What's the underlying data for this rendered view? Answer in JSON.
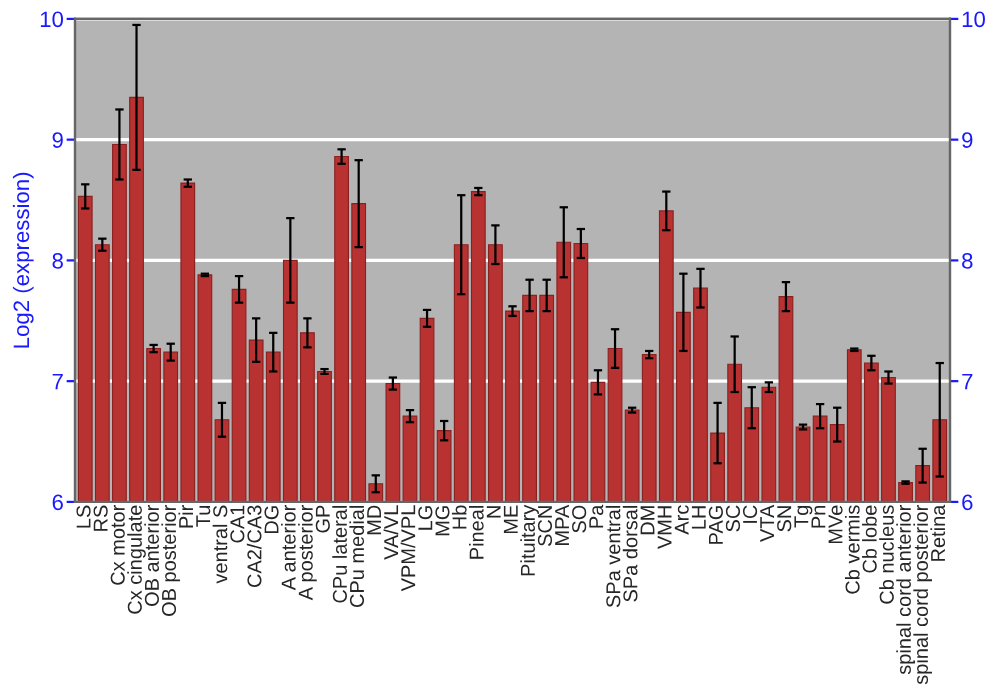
{
  "chart_data": {
    "type": "bar",
    "ylabel": "Log2 (expression)",
    "categories": [
      "LS",
      "RS",
      "Cx motor",
      "Cx cingulate",
      "OB anterior",
      "OB posterior",
      "Pir",
      "Tu",
      "ventral S",
      "CA1",
      "CA2/CA3",
      "DG",
      "A anterior",
      "A posterior",
      "GP",
      "CPu lateral",
      "CPu medial",
      "MD",
      "VA/VL",
      "VPM/VPL",
      "LG",
      "MG",
      "Hb",
      "Pineal",
      "N",
      "ME",
      "Pituitary",
      "SCN",
      "MPA",
      "SO",
      "Pa",
      "SPa ventral",
      "SPa dorsal",
      "DM",
      "VMH",
      "Arc",
      "LH",
      "PAG",
      "SC",
      "IC",
      "VTA",
      "SN",
      "Tg",
      "Pn",
      "MVe",
      "Cb vermis",
      "Cb lobe",
      "Cb nucleus",
      "spinal cord anterior",
      "spinal cord posterior",
      "Retina"
    ],
    "values": [
      8.53,
      8.13,
      8.96,
      9.35,
      7.27,
      7.24,
      8.64,
      7.88,
      6.68,
      7.76,
      7.34,
      7.24,
      8.0,
      7.4,
      7.08,
      8.86,
      8.47,
      6.15,
      6.98,
      6.71,
      7.52,
      6.59,
      8.13,
      8.57,
      8.13,
      7.58,
      7.71,
      7.71,
      8.15,
      8.14,
      6.99,
      7.27,
      6.76,
      7.22,
      8.41,
      7.57,
      7.77,
      6.57,
      7.14,
      6.78,
      6.95,
      7.7,
      6.62,
      6.71,
      6.64,
      7.26,
      7.15,
      7.03,
      6.16,
      6.3,
      6.68
    ],
    "errors": [
      0.1,
      0.05,
      0.29,
      0.6,
      0.03,
      0.07,
      0.03,
      0.01,
      0.14,
      0.11,
      0.18,
      0.16,
      0.35,
      0.12,
      0.02,
      0.06,
      0.36,
      0.07,
      0.05,
      0.05,
      0.07,
      0.08,
      0.41,
      0.03,
      0.16,
      0.04,
      0.13,
      0.13,
      0.29,
      0.12,
      0.1,
      0.16,
      0.02,
      0.03,
      0.16,
      0.32,
      0.16,
      0.25,
      0.23,
      0.17,
      0.04,
      0.12,
      0.02,
      0.1,
      0.14,
      0.01,
      0.06,
      0.05,
      0.01,
      0.14,
      0.47
    ],
    "color": "#b83232",
    "ylim": [
      6,
      10
    ],
    "yticks": [
      6,
      7,
      8,
      9,
      10
    ],
    "y2lim": [
      6,
      10
    ],
    "y2ticks": [
      6,
      7,
      8,
      9,
      10
    ],
    "grid": "y",
    "legend": false
  }
}
